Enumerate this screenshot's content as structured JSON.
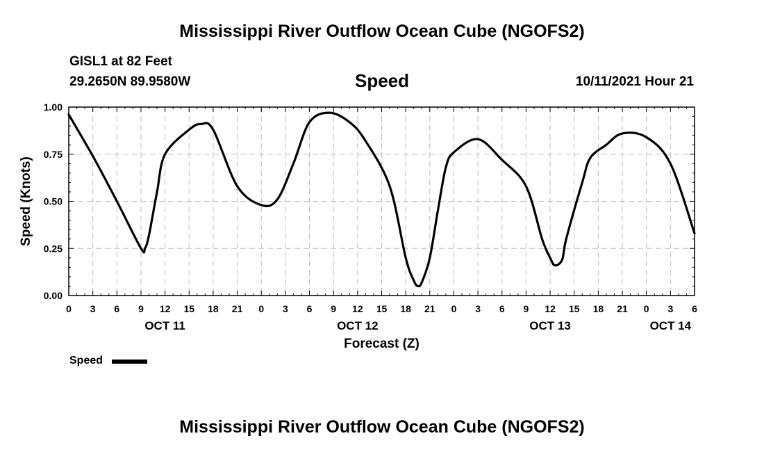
{
  "header": {
    "title_top": "Mississippi River Outflow Ocean Cube (NGOFS2)",
    "station": "GISL1 at 82 Feet",
    "coords": "29.2650N  89.9580W",
    "variable": "Speed",
    "datetime": "10/11/2021 Hour 21",
    "title_bottom": "Mississippi River Outflow Ocean Cube (NGOFS2)"
  },
  "legend": {
    "label": "Speed",
    "color": "#000000"
  },
  "chart_data": {
    "type": "line",
    "title": "Speed",
    "xlabel": "Forecast (Z)",
    "ylabel": "Speed (Knots)",
    "x_unit": "hours since 10/11/2021 00Z",
    "xlim": [
      0,
      78
    ],
    "ylim": [
      0,
      1
    ],
    "grid": true,
    "legend_position": "bottom-left",
    "y_ticks": [
      "0.00",
      "0.25",
      "0.50",
      "0.75",
      "1.00"
    ],
    "y_tick_values": [
      0,
      0.25,
      0.5,
      0.75,
      1.0
    ],
    "x_tick_labels": [
      "0",
      "3",
      "6",
      "9",
      "12",
      "15",
      "18",
      "21",
      "0",
      "3",
      "6",
      "9",
      "12",
      "15",
      "18",
      "21",
      "0",
      "3",
      "6",
      "9",
      "12",
      "15",
      "18",
      "21",
      "0",
      "3",
      "6"
    ],
    "date_labels": [
      {
        "label": "OCT 11",
        "hour": 12
      },
      {
        "label": "OCT 12",
        "hour": 36
      },
      {
        "label": "OCT 13",
        "hour": 60
      },
      {
        "label": "OCT 14",
        "hour": 75
      }
    ],
    "series": [
      {
        "name": "Speed",
        "color": "#000000",
        "points": [
          [
            0,
            0.96
          ],
          [
            3,
            0.74
          ],
          [
            6,
            0.5
          ],
          [
            9,
            0.25
          ],
          [
            9.5,
            0.25
          ],
          [
            10,
            0.32
          ],
          [
            11,
            0.55
          ],
          [
            12,
            0.75
          ],
          [
            15,
            0.88
          ],
          [
            16.5,
            0.91
          ],
          [
            18,
            0.88
          ],
          [
            21,
            0.58
          ],
          [
            24,
            0.48
          ],
          [
            26,
            0.51
          ],
          [
            28,
            0.7
          ],
          [
            30,
            0.92
          ],
          [
            32.5,
            0.97
          ],
          [
            35,
            0.92
          ],
          [
            37,
            0.82
          ],
          [
            40,
            0.58
          ],
          [
            42,
            0.2
          ],
          [
            43,
            0.08
          ],
          [
            43.5,
            0.05
          ],
          [
            44,
            0.07
          ],
          [
            45,
            0.2
          ],
          [
            46,
            0.45
          ],
          [
            47,
            0.68
          ],
          [
            48,
            0.76
          ],
          [
            51,
            0.83
          ],
          [
            54,
            0.72
          ],
          [
            57,
            0.58
          ],
          [
            59,
            0.3
          ],
          [
            60,
            0.2
          ],
          [
            60.6,
            0.16
          ],
          [
            61.5,
            0.19
          ],
          [
            62,
            0.3
          ],
          [
            64,
            0.6
          ],
          [
            65,
            0.73
          ],
          [
            67,
            0.8
          ],
          [
            69,
            0.86
          ],
          [
            72,
            0.84
          ],
          [
            75,
            0.7
          ],
          [
            78,
            0.33
          ]
        ]
      }
    ]
  }
}
